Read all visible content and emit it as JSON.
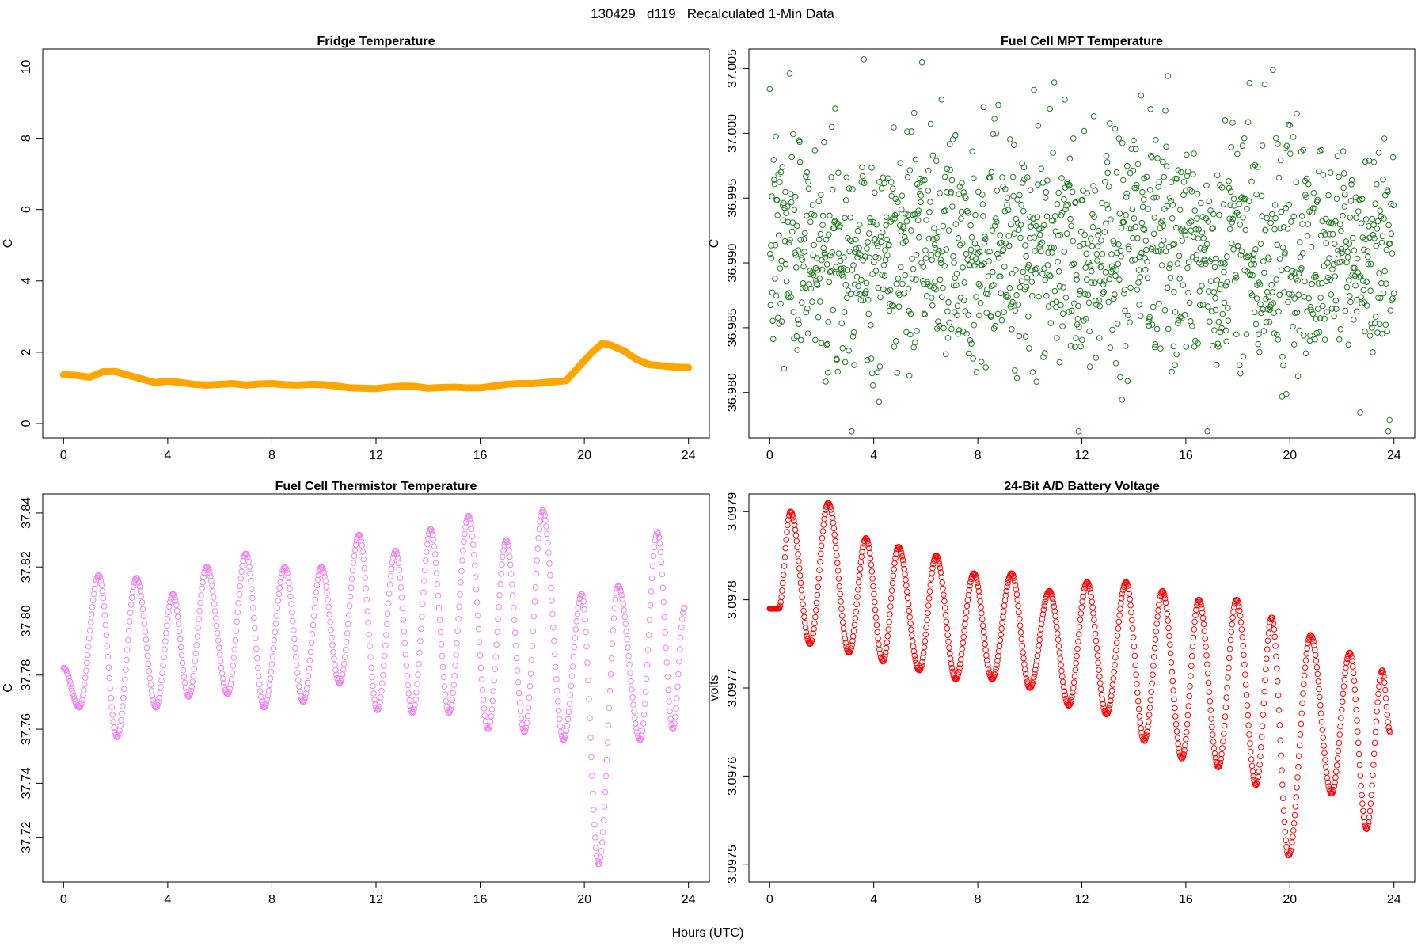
{
  "page_title": "130429   d119   Recalculated 1-Min Data",
  "shared_xlabel": "Hours (UTC)",
  "colors": {
    "fridge": "#FFA500",
    "mpt": "#1E7B1E",
    "thermistor": "#EE82EE",
    "battery": "#FF0000"
  },
  "chart_data": [
    {
      "type": "line",
      "name": "fridge",
      "title": "Fridge Temperature",
      "xlabel": "",
      "ylabel": "C",
      "xlim": [
        -0.8,
        24.8
      ],
      "ylim": [
        -0.4,
        10.5
      ],
      "xticks": [
        0,
        4,
        8,
        12,
        16,
        20,
        24
      ],
      "yticks": [
        0,
        2,
        4,
        6,
        8,
        10
      ],
      "ytick_labels": [
        "0",
        "2",
        "4",
        "6",
        "8",
        "10"
      ],
      "series": [
        {
          "name": "Fridge Temperature",
          "color_key": "fridge",
          "x": [
            0,
            0.5,
            1,
            1.5,
            2,
            2.5,
            3,
            3.5,
            4,
            4.5,
            5,
            5.5,
            6,
            6.5,
            7,
            7.5,
            8,
            8.5,
            9,
            9.5,
            10,
            10.5,
            11,
            11.5,
            12,
            12.5,
            13,
            13.5,
            14,
            14.5,
            15,
            15.5,
            16,
            16.5,
            17,
            17.5,
            18,
            18.5,
            19,
            19.3,
            19.8,
            20.3,
            20.7,
            21,
            21.5,
            22,
            22.5,
            23,
            23.5,
            24
          ],
          "y": [
            1.37,
            1.35,
            1.3,
            1.45,
            1.46,
            1.35,
            1.25,
            1.15,
            1.19,
            1.15,
            1.1,
            1.08,
            1.1,
            1.12,
            1.08,
            1.11,
            1.12,
            1.09,
            1.08,
            1.1,
            1.09,
            1.05,
            1.0,
            0.99,
            0.98,
            1.02,
            1.05,
            1.04,
            0.99,
            1.01,
            1.02,
            1.0,
            1.0,
            1.05,
            1.1,
            1.12,
            1.12,
            1.15,
            1.18,
            1.2,
            1.6,
            2.0,
            2.25,
            2.2,
            2.05,
            1.8,
            1.65,
            1.62,
            1.58,
            1.57
          ]
        }
      ]
    },
    {
      "type": "scatter",
      "name": "mpt",
      "title": "Fuel Cell MPT Temperature",
      "xlabel": "",
      "ylabel": "C",
      "xlim": [
        -0.8,
        24.8
      ],
      "ylim": [
        36.9765,
        37.0065
      ],
      "xticks": [
        0,
        4,
        8,
        12,
        16,
        20,
        24
      ],
      "yticks": [
        36.98,
        36.985,
        36.99,
        36.995,
        37.0,
        37.005
      ],
      "ytick_labels": [
        "36.980",
        "36.985",
        "36.990",
        "36.995",
        "37.000",
        "37.005"
      ],
      "series": [
        {
          "name": "Fuel Cell MPT Temperature",
          "color_key": "mpt",
          "generator": "noise",
          "n_points": 1440,
          "mean": 36.991,
          "sd": 0.0045,
          "seed": 7,
          "x_range": [
            0,
            24
          ],
          "clip": [
            36.977,
            37.0062
          ]
        }
      ]
    },
    {
      "type": "scatter",
      "name": "thermistor",
      "title": "Fuel Cell Thermistor Temperature",
      "xlabel": "",
      "ylabel": "C",
      "xlim": [
        -0.8,
        24.8
      ],
      "ylim": [
        37.7035,
        37.847
      ],
      "xticks": [
        0,
        4,
        8,
        12,
        16,
        20,
        24
      ],
      "yticks": [
        37.72,
        37.74,
        37.76,
        37.78,
        37.8,
        37.82,
        37.84
      ],
      "ytick_labels": [
        "37.72",
        "37.74",
        "37.76",
        "37.78",
        "37.80",
        "37.82",
        "37.84"
      ],
      "series": [
        {
          "name": "Fuel Cell Thermistor Temperature",
          "color_key": "thermistor",
          "generator": "oscillation",
          "n_points": 800,
          "x_range": [
            0,
            23.85
          ],
          "start_phase": 0.5,
          "maxima": [
            [
              1.35,
              37.817
            ],
            [
              2.8,
              37.816
            ],
            [
              4.2,
              37.81
            ],
            [
              5.5,
              37.82
            ],
            [
              7.0,
              37.825
            ],
            [
              8.5,
              37.82
            ],
            [
              9.9,
              37.82
            ],
            [
              11.35,
              37.832
            ],
            [
              12.75,
              37.826
            ],
            [
              14.1,
              37.834
            ],
            [
              15.55,
              37.839
            ],
            [
              17.0,
              37.83
            ],
            [
              18.4,
              37.841
            ],
            [
              19.9,
              37.81
            ],
            [
              21.3,
              37.813
            ],
            [
              22.8,
              37.833
            ]
          ],
          "minima": [
            [
              0.6,
              37.768
            ],
            [
              2.05,
              37.757
            ],
            [
              3.55,
              37.768
            ],
            [
              4.8,
              37.772
            ],
            [
              6.3,
              37.773
            ],
            [
              7.7,
              37.768
            ],
            [
              9.2,
              37.77
            ],
            [
              10.6,
              37.777
            ],
            [
              12.05,
              37.767
            ],
            [
              13.4,
              37.766
            ],
            [
              14.8,
              37.766
            ],
            [
              16.3,
              37.76
            ],
            [
              17.7,
              37.759
            ],
            [
              19.2,
              37.756
            ],
            [
              20.55,
              37.71
            ],
            [
              22.15,
              37.756
            ],
            [
              23.4,
              37.76
            ]
          ],
          "end_value": 37.805
        }
      ]
    },
    {
      "type": "scatter",
      "name": "battery",
      "title": "24-Bit A/D Battery Voltage",
      "xlabel": "",
      "ylabel": "volts",
      "xlim": [
        -0.8,
        24.8
      ],
      "ylim": [
        3.09748,
        3.09792
      ],
      "xticks": [
        0,
        4,
        8,
        12,
        16,
        20,
        24
      ],
      "yticks": [
        3.0975,
        3.0976,
        3.0977,
        3.0978,
        3.0979
      ],
      "ytick_labels": [
        "3.0975",
        "3.0976",
        "3.0977",
        "3.0978",
        "3.0979"
      ],
      "series": [
        {
          "name": "24-Bit A/D Battery Voltage",
          "color_key": "battery",
          "generator": "oscillation",
          "n_points": 900,
          "x_range": [
            0,
            23.85
          ],
          "start_value": 3.09779,
          "maxima": [
            [
              0.8,
              3.0979
            ],
            [
              2.25,
              3.09791
            ],
            [
              3.7,
              3.09787
            ],
            [
              4.95,
              3.09786
            ],
            [
              6.4,
              3.09785
            ],
            [
              7.85,
              3.09783
            ],
            [
              9.3,
              3.09783
            ],
            [
              10.75,
              3.09781
            ],
            [
              12.2,
              3.09782
            ],
            [
              13.7,
              3.09782
            ],
            [
              15.1,
              3.09781
            ],
            [
              16.5,
              3.0978
            ],
            [
              17.95,
              3.0978
            ],
            [
              19.3,
              3.09778
            ],
            [
              20.8,
              3.09776
            ],
            [
              22.3,
              3.09774
            ],
            [
              23.55,
              3.09772
            ]
          ],
          "minima": [
            [
              0.35,
              3.09779
            ],
            [
              1.55,
              3.09775
            ],
            [
              3.05,
              3.09774
            ],
            [
              4.35,
              3.09773
            ],
            [
              5.75,
              3.09772
            ],
            [
              7.15,
              3.09771
            ],
            [
              8.55,
              3.09771
            ],
            [
              10.0,
              3.0977
            ],
            [
              11.5,
              3.09768
            ],
            [
              12.95,
              3.09767
            ],
            [
              14.4,
              3.09764
            ],
            [
              15.85,
              3.09762
            ],
            [
              17.25,
              3.09761
            ],
            [
              18.7,
              3.09759
            ],
            [
              19.95,
              3.09751
            ],
            [
              21.6,
              3.09758
            ],
            [
              22.95,
              3.09754
            ]
          ],
          "end_value": 3.09765
        }
      ]
    }
  ]
}
